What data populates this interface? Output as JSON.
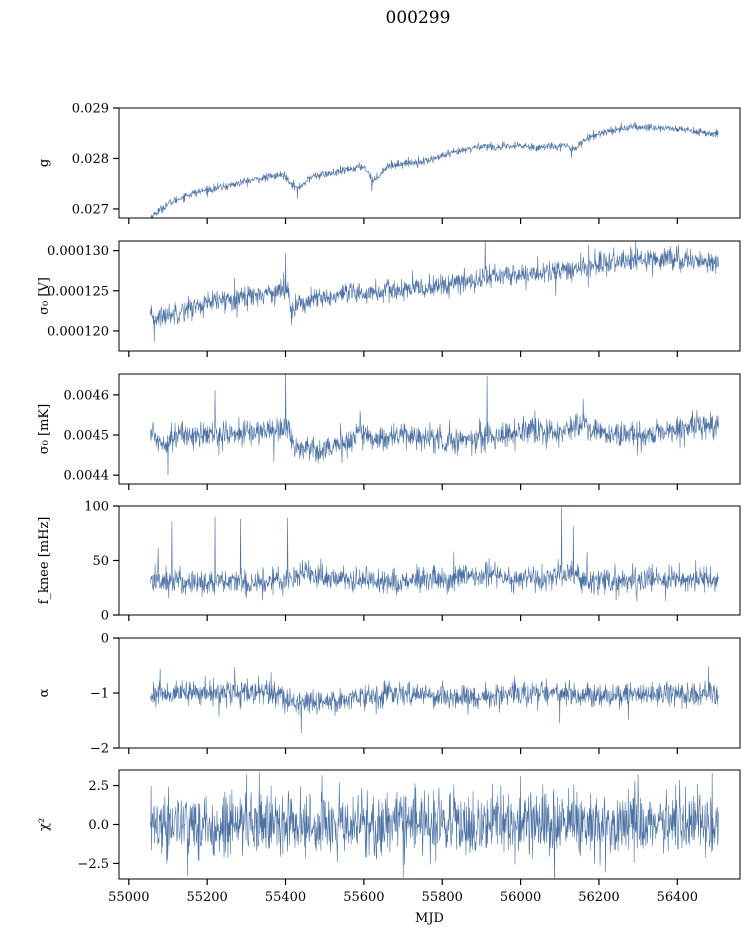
{
  "figure": {
    "title": "000299",
    "series_color": "#4c72a4"
  },
  "chart_data": [
    {
      "type": "line",
      "ylabel": "g",
      "xlim": [
        54975,
        56560
      ],
      "ylim": [
        0.02682,
        0.029
      ],
      "yticks": [
        0.027,
        0.028,
        0.029
      ],
      "ytick_labels": [
        "0.027",
        "0.028",
        "0.029"
      ],
      "xticks": [
        55000,
        55200,
        55400,
        55600,
        55800,
        56000,
        56200,
        56400
      ],
      "x_range": [
        55055,
        56505
      ],
      "noise": 4e-05,
      "anchors": [
        [
          55055,
          0.02683
        ],
        [
          55080,
          0.02698
        ],
        [
          55100,
          0.0271
        ],
        [
          55150,
          0.02728
        ],
        [
          55200,
          0.02738
        ],
        [
          55250,
          0.02745
        ],
        [
          55300,
          0.02755
        ],
        [
          55350,
          0.02762
        ],
        [
          55395,
          0.02768
        ],
        [
          55430,
          0.0274
        ],
        [
          55470,
          0.02765
        ],
        [
          55530,
          0.02772
        ],
        [
          55600,
          0.02785
        ],
        [
          55625,
          0.02755
        ],
        [
          55660,
          0.02785
        ],
        [
          55700,
          0.0279
        ],
        [
          55760,
          0.02795
        ],
        [
          55800,
          0.02805
        ],
        [
          55850,
          0.02815
        ],
        [
          55900,
          0.02825
        ],
        [
          55950,
          0.02822
        ],
        [
          56000,
          0.02825
        ],
        [
          56050,
          0.02822
        ],
        [
          56100,
          0.02826
        ],
        [
          56140,
          0.0282
        ],
        [
          56160,
          0.02835
        ],
        [
          56200,
          0.0285
        ],
        [
          56260,
          0.0286
        ],
        [
          56320,
          0.02862
        ],
        [
          56380,
          0.0286
        ],
        [
          56440,
          0.02855
        ],
        [
          56480,
          0.0285
        ],
        [
          56505,
          0.02845
        ]
      ],
      "spikes": [
        [
          55620,
          -0.00025
        ],
        [
          55430,
          -0.0002
        ],
        [
          56130,
          -0.0002
        ],
        [
          56290,
          0.0001
        ],
        [
          56080,
          8e-05
        ]
      ]
    },
    {
      "type": "line",
      "ylabel": "σ₀ [V]",
      "xlim": [
        54975,
        56560
      ],
      "ylim": [
        0.0001175,
        0.0001312
      ],
      "yticks": [
        0.00012,
        0.000125,
        0.00013
      ],
      "ytick_labels": [
        "0.000120",
        "0.000125",
        "0.000130"
      ],
      "xticks": [
        55000,
        55200,
        55400,
        55600,
        55800,
        56000,
        56200,
        56400
      ],
      "x_range": [
        55055,
        56505
      ],
      "noise": 7e-07,
      "anchors": [
        [
          55055,
          0.0001215
        ],
        [
          55100,
          0.000122
        ],
        [
          55150,
          0.0001228
        ],
        [
          55200,
          0.0001234
        ],
        [
          55250,
          0.0001239
        ],
        [
          55300,
          0.0001243
        ],
        [
          55350,
          0.0001247
        ],
        [
          55405,
          0.0001252
        ],
        [
          55415,
          0.0001229
        ],
        [
          55450,
          0.0001236
        ],
        [
          55500,
          0.0001241
        ],
        [
          55550,
          0.0001244
        ],
        [
          55600,
          0.0001247
        ],
        [
          55650,
          0.0001249
        ],
        [
          55700,
          0.0001251
        ],
        [
          55750,
          0.0001253
        ],
        [
          55800,
          0.0001257
        ],
        [
          55850,
          0.000126
        ],
        [
          55890,
          0.0001264
        ],
        [
          55910,
          0.0001268
        ],
        [
          55950,
          0.0001269
        ],
        [
          56000,
          0.000127
        ],
        [
          56050,
          0.0001272
        ],
        [
          56100,
          0.0001274
        ],
        [
          56150,
          0.0001278
        ],
        [
          56200,
          0.0001283
        ],
        [
          56250,
          0.0001286
        ],
        [
          56300,
          0.0001288
        ],
        [
          56350,
          0.0001291
        ],
        [
          56400,
          0.000129
        ],
        [
          56450,
          0.0001287
        ],
        [
          56505,
          0.0001286
        ]
      ],
      "spikes": [
        [
          55270,
          2.5e-06
        ],
        [
          55400,
          4.5e-06
        ],
        [
          55910,
          5e-06
        ],
        [
          56090,
          -3e-06
        ],
        [
          56190,
          2e-06
        ],
        [
          55065,
          -3e-06
        ]
      ]
    },
    {
      "type": "line",
      "ylabel": "σ₀ [mK]",
      "xlim": [
        54975,
        56560
      ],
      "ylim": [
        0.004378,
        0.004652
      ],
      "yticks": [
        0.0044,
        0.0045,
        0.0046
      ],
      "ytick_labels": [
        "0.0044",
        "0.0045",
        "0.0046"
      ],
      "xticks": [
        55000,
        55200,
        55400,
        55600,
        55800,
        56000,
        56200,
        56400
      ],
      "x_range": [
        55055,
        56505
      ],
      "noise": 1.6e-05,
      "anchors": [
        [
          55055,
          0.00451
        ],
        [
          55080,
          0.00448
        ],
        [
          55120,
          0.0045
        ],
        [
          55200,
          0.0045
        ],
        [
          55300,
          0.004505
        ],
        [
          55380,
          0.004515
        ],
        [
          55405,
          0.004525
        ],
        [
          55420,
          0.00447
        ],
        [
          55480,
          0.004465
        ],
        [
          55550,
          0.004475
        ],
        [
          55590,
          0.00451
        ],
        [
          55620,
          0.00449
        ],
        [
          55700,
          0.0045
        ],
        [
          55780,
          0.00449
        ],
        [
          55830,
          0.004485
        ],
        [
          55900,
          0.004495
        ],
        [
          55950,
          0.0045
        ],
        [
          56000,
          0.00451
        ],
        [
          56100,
          0.004505
        ],
        [
          56160,
          0.00453
        ],
        [
          56200,
          0.004505
        ],
        [
          56300,
          0.004495
        ],
        [
          56400,
          0.004515
        ],
        [
          56505,
          0.00452
        ]
      ],
      "spikes": [
        [
          55220,
          0.00011
        ],
        [
          55400,
          0.00014
        ],
        [
          55915,
          0.00015
        ],
        [
          55100,
          -9e-05
        ],
        [
          55370,
          -8e-05
        ],
        [
          55590,
          5e-05
        ],
        [
          56160,
          6e-05
        ],
        [
          55910,
          -4e-05
        ]
      ]
    },
    {
      "type": "line",
      "ylabel": "f_knee [mHz]",
      "xlim": [
        54975,
        56560
      ],
      "ylim": [
        0,
        100
      ],
      "yticks": [
        0,
        50,
        100
      ],
      "ytick_labels": [
        "0",
        "50",
        "100"
      ],
      "xticks": [
        55000,
        55200,
        55400,
        55600,
        55800,
        56000,
        56200,
        56400
      ],
      "x_range": [
        55055,
        56505
      ],
      "noise": 6,
      "anchors": [
        [
          55055,
          32
        ],
        [
          55100,
          31
        ],
        [
          55200,
          30
        ],
        [
          55300,
          30
        ],
        [
          55400,
          32
        ],
        [
          55440,
          40
        ],
        [
          55480,
          36
        ],
        [
          55550,
          33
        ],
        [
          55600,
          32
        ],
        [
          55700,
          31
        ],
        [
          55800,
          32
        ],
        [
          55900,
          35
        ],
        [
          55930,
          40
        ],
        [
          55970,
          34
        ],
        [
          56050,
          32
        ],
        [
          56120,
          38
        ],
        [
          56160,
          33
        ],
        [
          56250,
          31
        ],
        [
          56350,
          32
        ],
        [
          56450,
          33
        ],
        [
          56505,
          32
        ]
      ],
      "spikes": [
        [
          55110,
          55
        ],
        [
          55220,
          60
        ],
        [
          55285,
          58
        ],
        [
          55405,
          56
        ],
        [
          56105,
          62
        ],
        [
          56135,
          45
        ],
        [
          55075,
          30
        ],
        [
          55830,
          25
        ],
        [
          56170,
          25
        ]
      ]
    },
    {
      "type": "line",
      "ylabel": "α",
      "xlim": [
        54975,
        56560
      ],
      "ylim": [
        -2,
        0
      ],
      "yticks": [
        -2,
        -1,
        0
      ],
      "ytick_labels": [
        "−2",
        "−1",
        "0"
      ],
      "xticks": [
        55000,
        55200,
        55400,
        55600,
        55800,
        56000,
        56200,
        56400
      ],
      "x_range": [
        55055,
        56505
      ],
      "noise": 0.11,
      "anchors": [
        [
          55055,
          -1.02
        ],
        [
          55150,
          -1.0
        ],
        [
          55250,
          -0.98
        ],
        [
          55380,
          -1.0
        ],
        [
          55420,
          -1.18
        ],
        [
          55500,
          -1.15
        ],
        [
          55560,
          -1.1
        ],
        [
          55600,
          -1.05
        ],
        [
          55700,
          -1.02
        ],
        [
          55800,
          -1.05
        ],
        [
          55880,
          -1.1
        ],
        [
          55920,
          -1.05
        ],
        [
          56000,
          -1.02
        ],
        [
          56100,
          -1.0
        ],
        [
          56200,
          -1.05
        ],
        [
          56300,
          -1.02
        ],
        [
          56400,
          -1.0
        ],
        [
          56505,
          -1.03
        ]
      ],
      "spikes": [
        [
          56480,
          0.5
        ],
        [
          56100,
          -0.55
        ],
        [
          55440,
          -0.55
        ],
        [
          55230,
          -0.45
        ],
        [
          55080,
          0.45
        ],
        [
          55270,
          0.45
        ]
      ]
    },
    {
      "type": "line",
      "ylabel": "χ²",
      "xlim": [
        54975,
        56560
      ],
      "ylim": [
        -3.5,
        3.5
      ],
      "yticks": [
        -2.5,
        0,
        2.5
      ],
      "ytick_labels": [
        "−2.5",
        "0.0",
        "2.5"
      ],
      "xticks": [
        55000,
        55200,
        55400,
        55600,
        55800,
        56000,
        56200,
        56400
      ],
      "xtick_labels": [
        "55000",
        "55200",
        "55400",
        "55600",
        "55800",
        "56000",
        "56200",
        "56400"
      ],
      "xlabel": "MJD",
      "x_range": [
        55055,
        56505
      ],
      "noise": 1.05,
      "anchors": [
        [
          55055,
          0
        ],
        [
          56505,
          0
        ]
      ],
      "spikes": [
        [
          55300,
          3.2
        ],
        [
          55700,
          -3.4
        ],
        [
          56000,
          3.1
        ],
        [
          55150,
          -3.3
        ],
        [
          56300,
          3.2
        ]
      ]
    }
  ]
}
